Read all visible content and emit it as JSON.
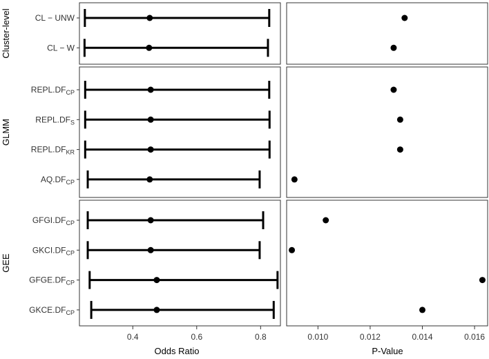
{
  "chart_data": {
    "type": "forest-plot",
    "panels": [
      "Odds Ratio",
      "P-Value"
    ],
    "xlabels": {
      "or": "Odds Ratio",
      "p": "P-Value"
    },
    "or_axis": {
      "xlim": [
        0.233,
        0.862
      ],
      "ticks": [
        0.4,
        0.6,
        0.8
      ],
      "tick_labels": [
        "0.4",
        "0.6",
        "0.8"
      ]
    },
    "p_axis": {
      "xlim": [
        0.0088,
        0.0165
      ],
      "ticks": [
        0.01,
        0.012,
        0.014,
        0.016
      ],
      "tick_labels": [
        "0.010",
        "0.012",
        "0.014",
        "0.016"
      ]
    },
    "groups": [
      {
        "name": "Cluster-level",
        "rows": [
          {
            "label": "CL − UNW",
            "sub": "",
            "or": 0.453,
            "lower": 0.25,
            "upper": 0.827,
            "p": 0.01332
          },
          {
            "label": "CL − W",
            "sub": "",
            "or": 0.451,
            "lower": 0.249,
            "upper": 0.823,
            "p": 0.0129
          }
        ]
      },
      {
        "name": "GLMM",
        "rows": [
          {
            "label": "REPL.DF",
            "sub": "CP",
            "or": 0.456,
            "lower": 0.251,
            "upper": 0.827,
            "p": 0.0129
          },
          {
            "label": "REPL.DF",
            "sub": "S",
            "or": 0.456,
            "lower": 0.251,
            "upper": 0.828,
            "p": 0.01315
          },
          {
            "label": "REPL.DF",
            "sub": "KR",
            "or": 0.456,
            "lower": 0.251,
            "upper": 0.828,
            "p": 0.01315
          },
          {
            "label": "AQ.DF",
            "sub": "CP",
            "or": 0.453,
            "lower": 0.259,
            "upper": 0.797,
            "p": 0.0091
          }
        ]
      },
      {
        "name": "GEE",
        "rows": [
          {
            "label": "GFGI.DF",
            "sub": "CP",
            "or": 0.456,
            "lower": 0.259,
            "upper": 0.808,
            "p": 0.0103
          },
          {
            "label": "GKCI.DF",
            "sub": "CP",
            "or": 0.456,
            "lower": 0.259,
            "upper": 0.797,
            "p": 0.009
          },
          {
            "label": "GFGE.DF",
            "sub": "CP",
            "or": 0.475,
            "lower": 0.265,
            "upper": 0.853,
            "p": 0.0163
          },
          {
            "label": "GKCE.DF",
            "sub": "CP",
            "or": 0.475,
            "lower": 0.27,
            "upper": 0.841,
            "p": 0.014
          }
        ]
      }
    ],
    "grid": false,
    "legend": "none"
  }
}
